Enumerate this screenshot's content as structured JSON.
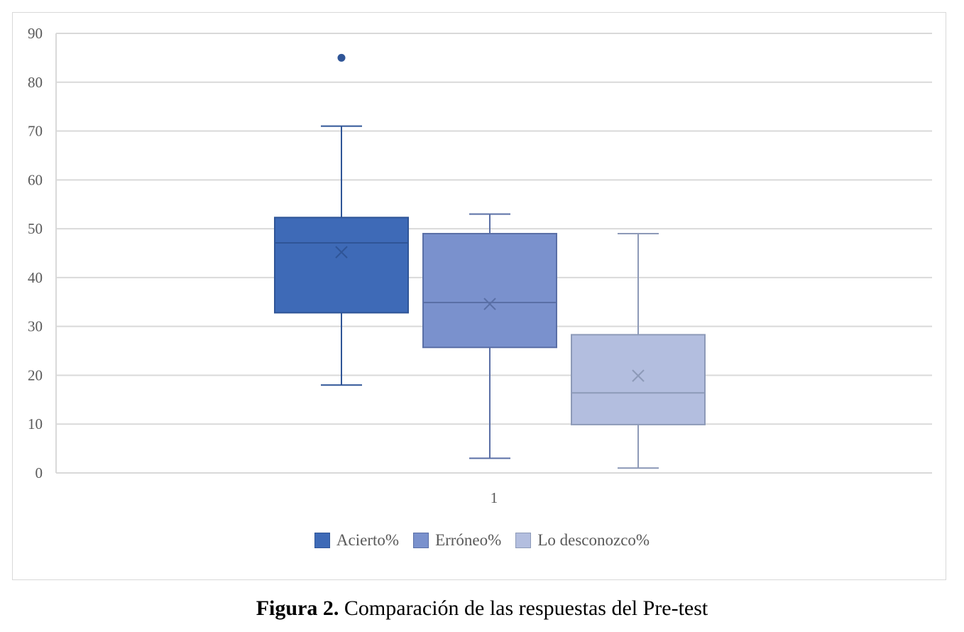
{
  "chart_data": {
    "type": "box",
    "title": "",
    "xlabel": "",
    "ylabel": "",
    "ylim": [
      0,
      90
    ],
    "yticks": [
      0,
      10,
      20,
      30,
      40,
      50,
      60,
      70,
      80,
      90
    ],
    "categories": [
      "1"
    ],
    "grid": true,
    "legend_position": "bottom",
    "series": [
      {
        "name": "Acierto%",
        "color": "#3e6ab7",
        "edge": "#2f5597",
        "min": 18,
        "q1": 32.8,
        "median": 47.1,
        "q3": 52.3,
        "max": 71,
        "mean": 45.2,
        "outliers": [
          85
        ]
      },
      {
        "name": "Erróneo%",
        "color": "#7a91cd",
        "edge": "#5a6fa6",
        "min": 3,
        "q1": 25.7,
        "median": 34.9,
        "q3": 49,
        "max": 53,
        "mean": 34.6,
        "outliers": []
      },
      {
        "name": "Lo desconozco%",
        "color": "#b3bedf",
        "edge": "#8d9ab8",
        "min": 1,
        "q1": 9.9,
        "median": 16.4,
        "q3": 28.3,
        "max": 49,
        "mean": 19.9,
        "outliers": []
      }
    ]
  },
  "caption": {
    "label": "Figura 2.",
    "text": " Comparación de las respuestas del Pre-test"
  }
}
